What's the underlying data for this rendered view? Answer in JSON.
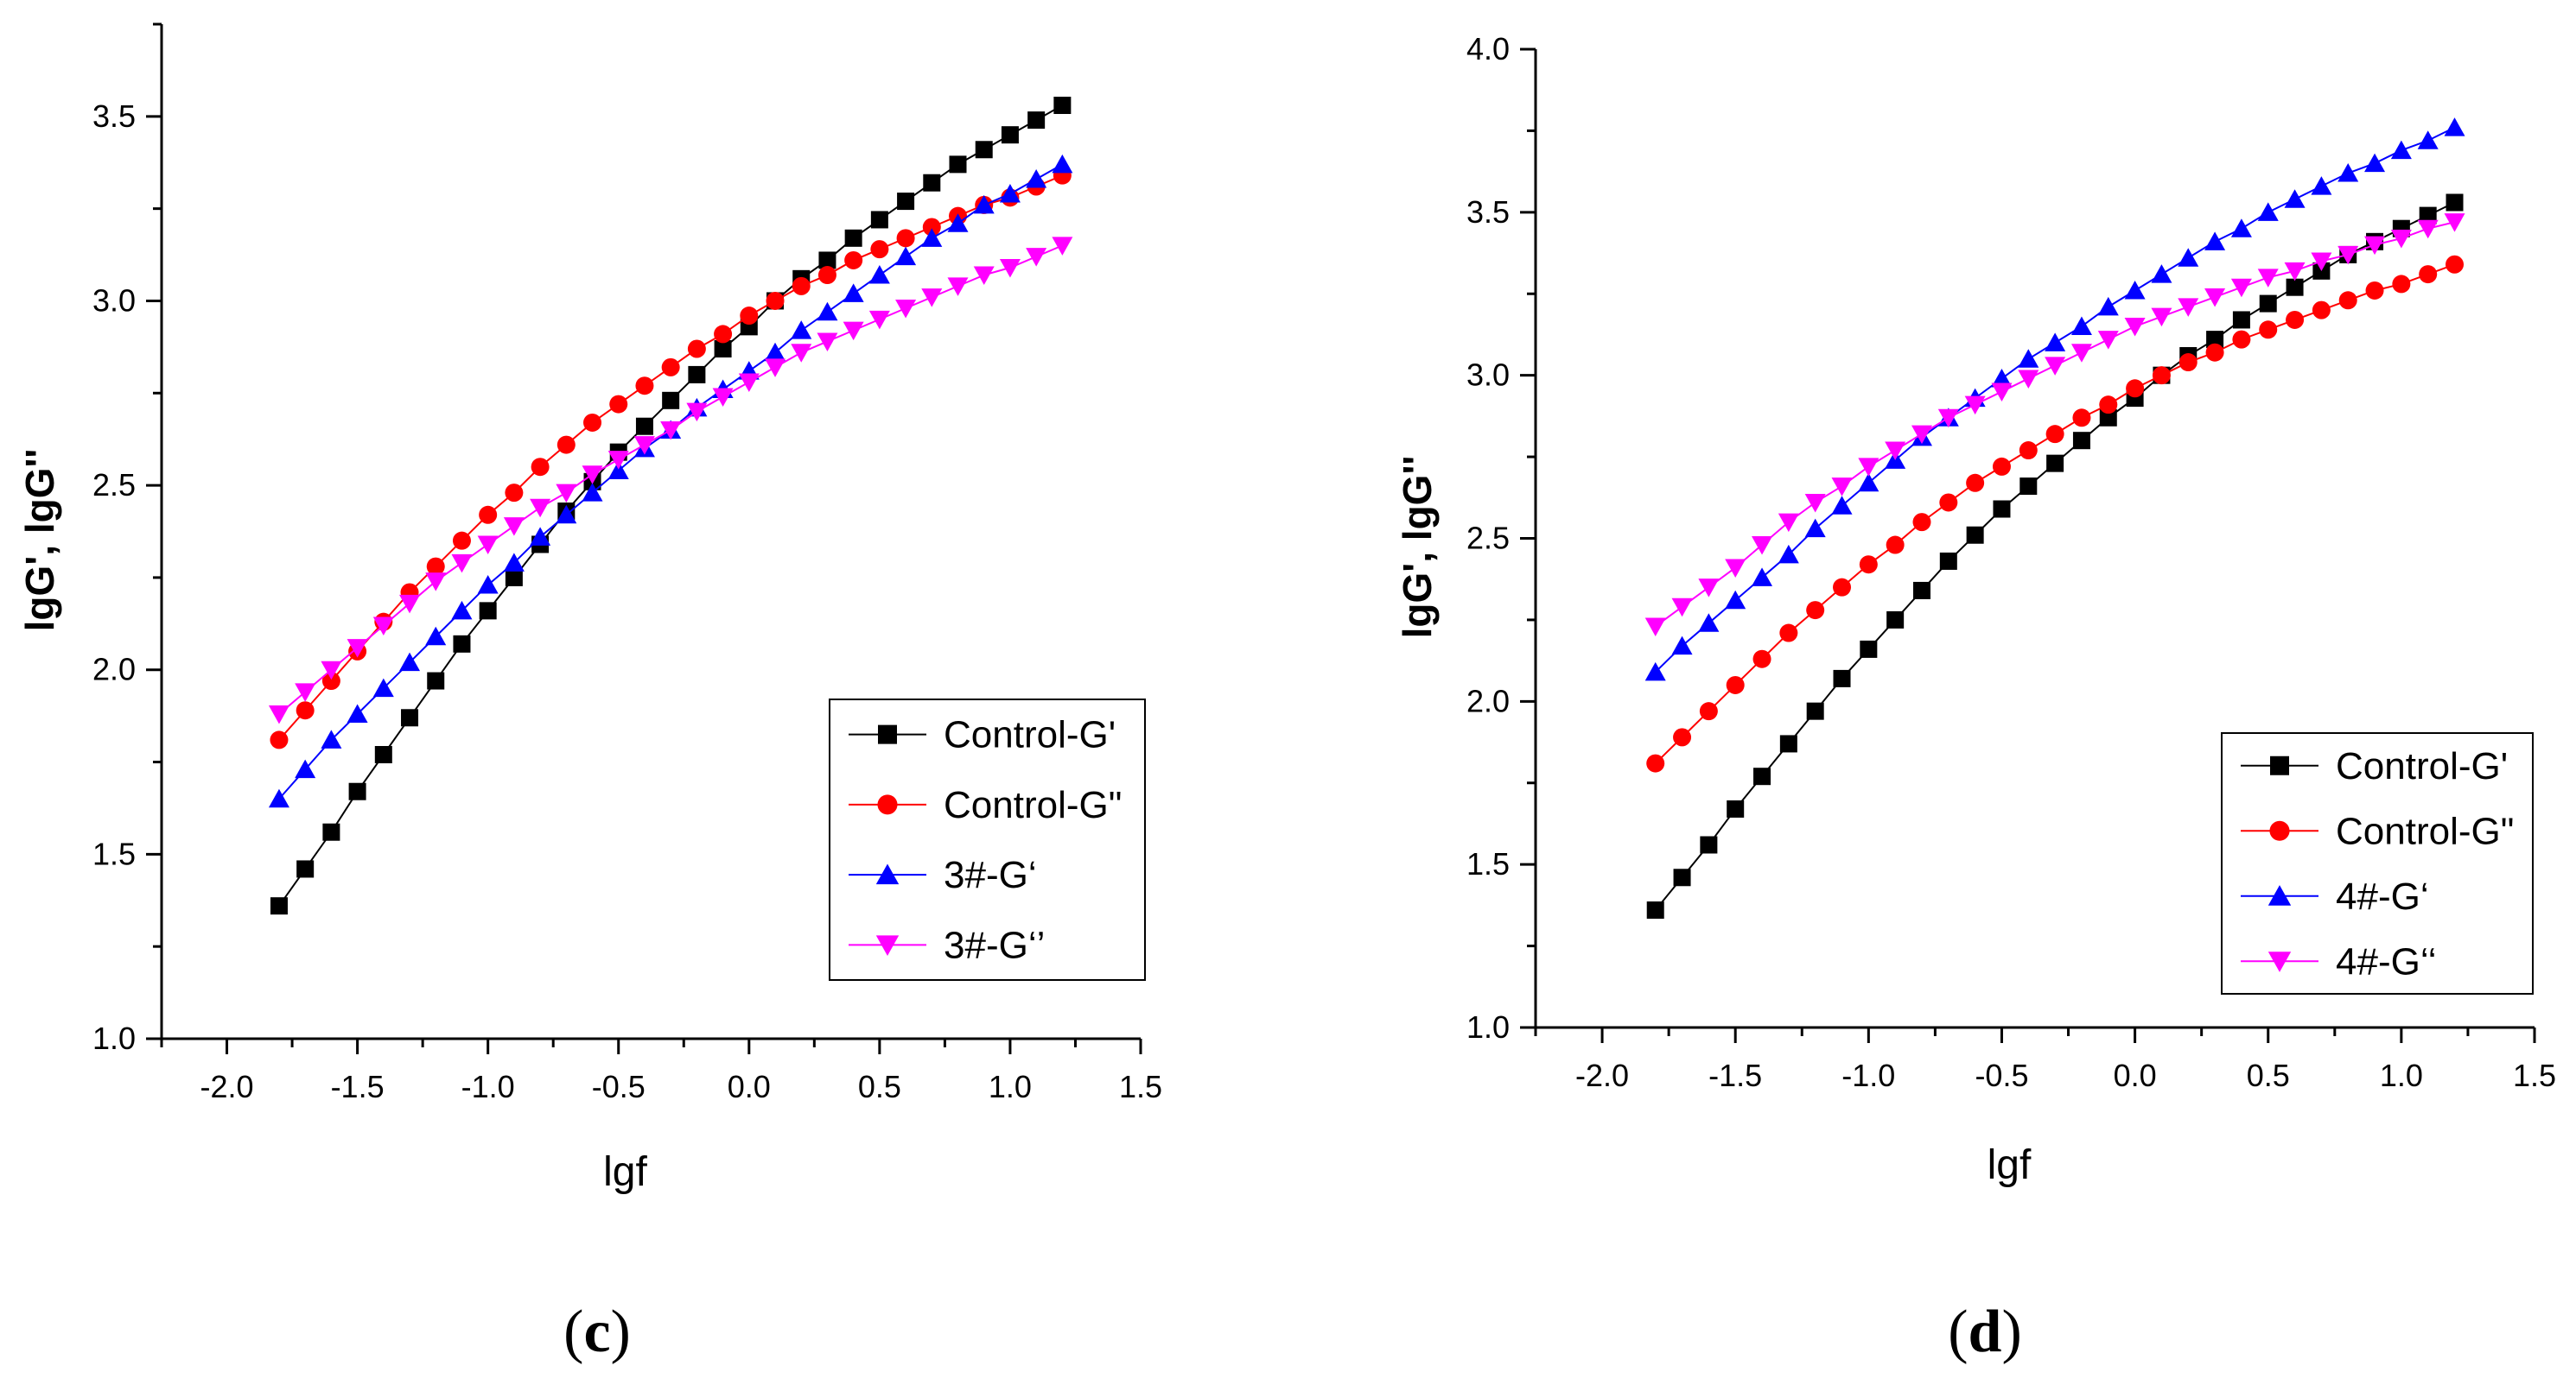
{
  "chart_data": [
    {
      "type": "scatter",
      "panel_label": "c",
      "title": "",
      "xlabel": "lgf",
      "ylabel": "lgG', lgG''",
      "xlim": [
        -2.25,
        1.5
      ],
      "ylim": [
        1.0,
        3.75
      ],
      "xticks": [
        "-2.0",
        "-1.5",
        "-1.0",
        "-0.5",
        "0.0",
        "0.5",
        "1.0",
        "1.5"
      ],
      "yticks": [
        "1.0",
        "1.5",
        "2.0",
        "2.5",
        "3.0",
        "3.5"
      ],
      "legend_position": "lower-right",
      "x": [
        -1.8,
        -1.7,
        -1.6,
        -1.5,
        -1.4,
        -1.3,
        -1.2,
        -1.1,
        -1.0,
        -0.9,
        -0.8,
        -0.7,
        -0.6,
        -0.5,
        -0.4,
        -0.3,
        -0.2,
        -0.1,
        0.0,
        0.1,
        0.2,
        0.3,
        0.4,
        0.5,
        0.6,
        0.7,
        0.8,
        0.9,
        1.0,
        1.1,
        1.2
      ],
      "series": [
        {
          "name": "Control-G'",
          "color": "#000000",
          "marker": "square",
          "values": [
            1.36,
            1.46,
            1.56,
            1.67,
            1.77,
            1.87,
            1.97,
            2.07,
            2.16,
            2.25,
            2.34,
            2.43,
            2.51,
            2.59,
            2.66,
            2.73,
            2.8,
            2.87,
            2.93,
            3.0,
            3.06,
            3.11,
            3.17,
            3.22,
            3.27,
            3.32,
            3.37,
            3.41,
            3.45,
            3.49,
            3.53
          ]
        },
        {
          "name": "Control-G\"",
          "color": "#ff0000",
          "marker": "circle",
          "values": [
            1.81,
            1.89,
            1.97,
            2.05,
            2.13,
            2.21,
            2.28,
            2.35,
            2.42,
            2.48,
            2.55,
            2.61,
            2.67,
            2.72,
            2.77,
            2.82,
            2.87,
            2.91,
            2.96,
            3.0,
            3.04,
            3.07,
            3.11,
            3.14,
            3.17,
            3.2,
            3.23,
            3.26,
            3.28,
            3.31,
            3.34
          ]
        },
        {
          "name": "3#-G‘",
          "color": "#0000ff",
          "marker": "triangle-up",
          "values": [
            1.65,
            1.73,
            1.81,
            1.88,
            1.95,
            2.02,
            2.09,
            2.16,
            2.23,
            2.29,
            2.36,
            2.42,
            2.48,
            2.54,
            2.6,
            2.65,
            2.71,
            2.76,
            2.81,
            2.86,
            2.92,
            2.97,
            3.02,
            3.07,
            3.12,
            3.17,
            3.21,
            3.26,
            3.29,
            3.33,
            3.37
          ]
        },
        {
          "name": "3#-G‘’",
          "color": "#ff00ff",
          "marker": "triangle-down",
          "values": [
            1.88,
            1.94,
            2.0,
            2.06,
            2.12,
            2.18,
            2.24,
            2.29,
            2.34,
            2.39,
            2.44,
            2.48,
            2.53,
            2.57,
            2.61,
            2.65,
            2.7,
            2.74,
            2.78,
            2.82,
            2.86,
            2.89,
            2.92,
            2.95,
            2.98,
            3.01,
            3.04,
            3.07,
            3.09,
            3.12,
            3.15
          ]
        }
      ]
    },
    {
      "type": "scatter",
      "panel_label": "d",
      "title": "",
      "xlabel": "lgf",
      "ylabel": "lgG', lgG''",
      "xlim": [
        -2.25,
        1.5
      ],
      "ylim": [
        1.0,
        4.0
      ],
      "xticks": [
        "-2.0",
        "-1.5",
        "-1.0",
        "-0.5",
        "0.0",
        "0.5",
        "1.0",
        "1.5"
      ],
      "yticks": [
        "1.0",
        "1.5",
        "2.0",
        "2.5",
        "3.0",
        "3.5",
        "4.0"
      ],
      "legend_position": "lower-right",
      "x": [
        -1.8,
        -1.7,
        -1.6,
        -1.5,
        -1.4,
        -1.3,
        -1.2,
        -1.1,
        -1.0,
        -0.9,
        -0.8,
        -0.7,
        -0.6,
        -0.5,
        -0.4,
        -0.3,
        -0.2,
        -0.1,
        0.0,
        0.1,
        0.2,
        0.3,
        0.4,
        0.5,
        0.6,
        0.7,
        0.8,
        0.9,
        1.0,
        1.1,
        1.2
      ],
      "series": [
        {
          "name": "Control-G'",
          "color": "#000000",
          "marker": "square",
          "values": [
            1.36,
            1.46,
            1.56,
            1.67,
            1.77,
            1.87,
            1.97,
            2.07,
            2.16,
            2.25,
            2.34,
            2.43,
            2.51,
            2.59,
            2.66,
            2.73,
            2.8,
            2.87,
            2.93,
            3.0,
            3.06,
            3.11,
            3.17,
            3.22,
            3.27,
            3.32,
            3.37,
            3.41,
            3.45,
            3.49,
            3.53
          ]
        },
        {
          "name": "Control-G\"",
          "color": "#ff0000",
          "marker": "circle",
          "values": [
            1.81,
            1.89,
            1.97,
            2.05,
            2.13,
            2.21,
            2.28,
            2.35,
            2.42,
            2.48,
            2.55,
            2.61,
            2.67,
            2.72,
            2.77,
            2.82,
            2.87,
            2.91,
            2.96,
            3.0,
            3.04,
            3.07,
            3.11,
            3.14,
            3.17,
            3.2,
            3.23,
            3.26,
            3.28,
            3.31,
            3.34
          ]
        },
        {
          "name": "4#-G‘",
          "color": "#0000ff",
          "marker": "triangle-up",
          "values": [
            2.09,
            2.17,
            2.24,
            2.31,
            2.38,
            2.45,
            2.53,
            2.6,
            2.67,
            2.74,
            2.81,
            2.87,
            2.93,
            2.99,
            3.05,
            3.1,
            3.15,
            3.21,
            3.26,
            3.31,
            3.36,
            3.41,
            3.45,
            3.5,
            3.54,
            3.58,
            3.62,
            3.65,
            3.69,
            3.72,
            3.76
          ]
        },
        {
          "name": "4#-G‘‘",
          "color": "#ff00ff",
          "marker": "triangle-down",
          "values": [
            2.23,
            2.29,
            2.35,
            2.41,
            2.48,
            2.55,
            2.61,
            2.66,
            2.72,
            2.77,
            2.82,
            2.87,
            2.91,
            2.95,
            2.99,
            3.03,
            3.07,
            3.11,
            3.15,
            3.18,
            3.21,
            3.24,
            3.27,
            3.3,
            3.32,
            3.35,
            3.37,
            3.4,
            3.42,
            3.45,
            3.47
          ]
        }
      ]
    }
  ]
}
